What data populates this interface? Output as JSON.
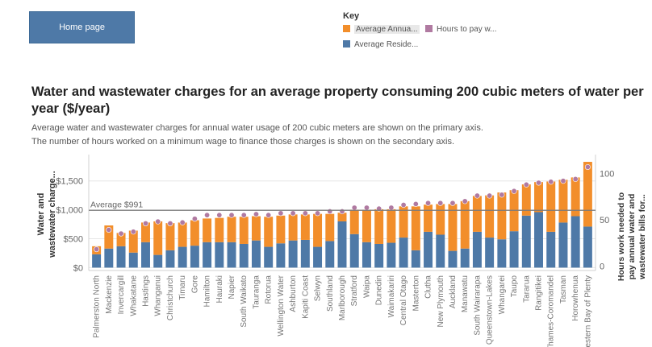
{
  "home_button": {
    "label": "Home page"
  },
  "legend": {
    "title": "Key",
    "entries": [
      {
        "label": "Average Annua...",
        "color": "#f28e2b"
      },
      {
        "label": "Hours to pay w...",
        "color": "#b07aa1"
      },
      {
        "label": "Average Reside...",
        "color": "#4e79a7"
      }
    ]
  },
  "header": {
    "title": "Water and wastewater charges for an average property consuming 200 cubic meters of water per year ($/year)",
    "subtitle_1": "Average water and wastewater charges for annual water usage of 200 cubic meters are shown on the primary axis.",
    "subtitle_2": "The number of hours worked on a minimum wage to finance those charges is shown on the secondary axis."
  },
  "chart_data": {
    "type": "bar",
    "stacked": true,
    "y_left_label_lines": [
      "Water and",
      "wastewater charge..."
    ],
    "y_right_label_lines": [
      "Hours work needed to",
      "pay annual water and",
      "wastewater bills for..."
    ],
    "y_left_ticks": [
      "$0",
      "$500",
      "$1,000",
      "$1,500"
    ],
    "y_left_tick_values": [
      0,
      500,
      1000,
      1500
    ],
    "y_right_ticks": [
      "0",
      "50",
      "100"
    ],
    "y_right_tick_values": [
      0,
      50,
      100
    ],
    "y_left_range": [
      -50,
      1900
    ],
    "y_right_range": [
      -5,
      117
    ],
    "reference_line": {
      "label": "Average $991",
      "value": 991
    },
    "colors": {
      "stack_lower": "#4e79a7",
      "stack_upper": "#f28e2b",
      "hours": "#b07aa1",
      "reference": "#999999",
      "grid": "#e6e6e6"
    },
    "categories": [
      "Palmerston North",
      "Mackenzie",
      "Invercargill",
      "Whakatane",
      "Hastings",
      "Whanganui",
      "Christchurch",
      "Timaru",
      "Gore",
      "Hamilton",
      "Hauraki",
      "Napier",
      "South Waikato",
      "Tauranga",
      "Rotorua",
      "Wellington Water",
      "Ashburton",
      "Kapiti Coast",
      "Selwyn",
      "Southland",
      "Marlborough",
      "Stratford",
      "Waipa",
      "Dunedin",
      "Waimakariri",
      "Central Otago",
      "Masterton",
      "Clutha",
      "New Plymouth",
      "Auckland",
      "Manawatu",
      "South Wairarapa",
      "Queenstown-Lakes",
      "Whangarei",
      "Taupo",
      "Tararua",
      "Rangitikei",
      "Thames-Coromandel",
      "Tasman",
      "Horowhenua",
      "Western Bay of Plenty"
    ],
    "series": [
      {
        "name": "Average Reside...",
        "values": [
          230,
          330,
          370,
          260,
          440,
          220,
          300,
          360,
          380,
          440,
          440,
          440,
          410,
          470,
          360,
          420,
          470,
          480,
          360,
          460,
          800,
          580,
          440,
          410,
          430,
          520,
          300,
          620,
          570,
          290,
          330,
          620,
          520,
          490,
          630,
          900,
          960,
          620,
          780,
          890,
          710
        ]
      },
      {
        "name": "Average Annua...",
        "values": [
          370,
          730,
          600,
          640,
          780,
          800,
          770,
          780,
          820,
          850,
          860,
          880,
          880,
          890,
          880,
          900,
          920,
          920,
          930,
          930,
          950,
          1000,
          1000,
          1010,
          1010,
          1060,
          1060,
          1090,
          1100,
          1100,
          1150,
          1240,
          1250,
          1300,
          1340,
          1440,
          1480,
          1490,
          1520,
          1560,
          1830
        ]
      },
      {
        "name": "Hours to pay w...",
        "values": [
          18,
          39,
          35,
          37,
          46,
          48,
          46,
          47,
          51,
          55,
          55,
          55,
          55,
          56,
          55,
          57,
          57,
          57,
          57,
          59,
          59,
          63,
          63,
          62,
          63,
          66,
          67,
          68,
          68,
          68,
          70,
          76,
          76,
          77,
          81,
          88,
          90,
          91,
          92,
          94,
          107
        ]
      }
    ]
  }
}
